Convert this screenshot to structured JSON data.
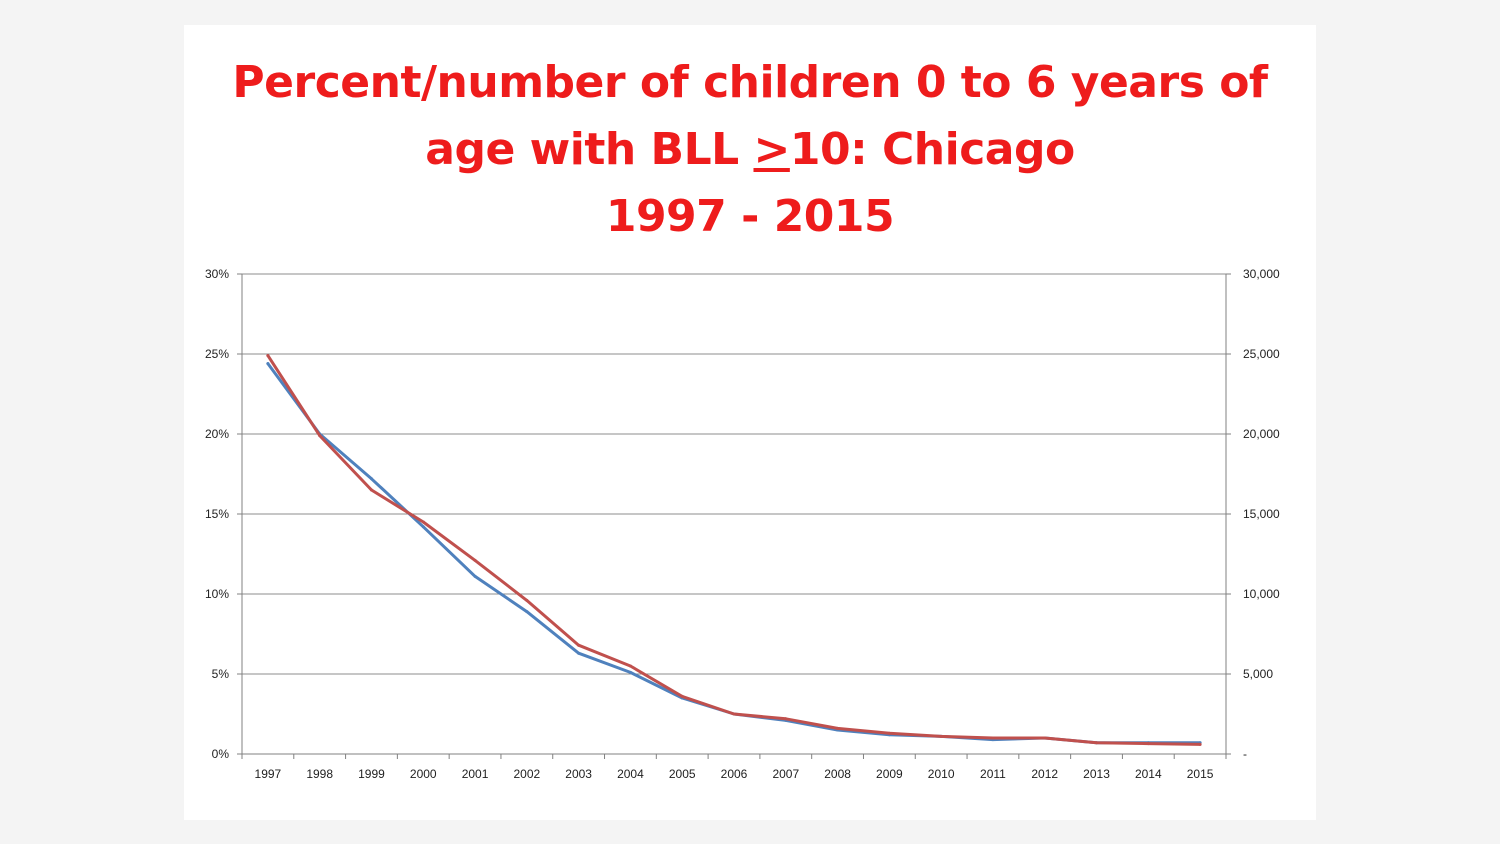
{
  "title": {
    "line1": "Percent/number of children 0 to 6 years of",
    "line2_prefix": "age with BLL ",
    "line2_symbol": ">",
    "line2_suffix": "10: Chicago",
    "line3": "1997 - 2015"
  },
  "colors": {
    "title": "#ee1c1c",
    "series_percent": "#4f81bd",
    "series_number": "#c0504d",
    "gridline": "#8c8c8c",
    "axis": "#808080"
  },
  "chart_data": {
    "type": "line",
    "title": "Percent/number of children 0 to 6 years of age with BLL >10: Chicago 1997 - 2015",
    "xlabel": "",
    "ylabel": "",
    "y2label": "",
    "categories": [
      "1997",
      "1998",
      "1999",
      "2000",
      "2001",
      "2002",
      "2003",
      "2004",
      "2005",
      "2006",
      "2007",
      "2008",
      "2009",
      "2010",
      "2011",
      "2012",
      "2013",
      "2014",
      "2015"
    ],
    "ylim": [
      0,
      30
    ],
    "y2lim": [
      0,
      30000
    ],
    "y_ticks": [
      "0%",
      "5%",
      "10%",
      "15%",
      "20%",
      "25%",
      "30%"
    ],
    "y2_ticks": [
      "-",
      "5,000",
      "10,000",
      "15,000",
      "20,000",
      "25,000",
      "30,000"
    ],
    "grid": true,
    "legend": "none",
    "series": [
      {
        "axis": "left",
        "values": [
          24.4,
          20.0,
          17.2,
          14.2,
          11.1,
          8.9,
          6.3,
          5.1,
          3.5,
          2.5,
          2.1,
          1.5,
          1.2,
          1.1,
          0.9,
          1.0,
          0.7,
          0.7,
          0.7
        ]
      },
      {
        "axis": "right",
        "values": [
          24900,
          19900,
          16500,
          14500,
          12100,
          9600,
          6800,
          5500,
          3600,
          2500,
          2200,
          1600,
          1300,
          1100,
          1000,
          1000,
          700,
          650,
          600
        ]
      }
    ]
  }
}
